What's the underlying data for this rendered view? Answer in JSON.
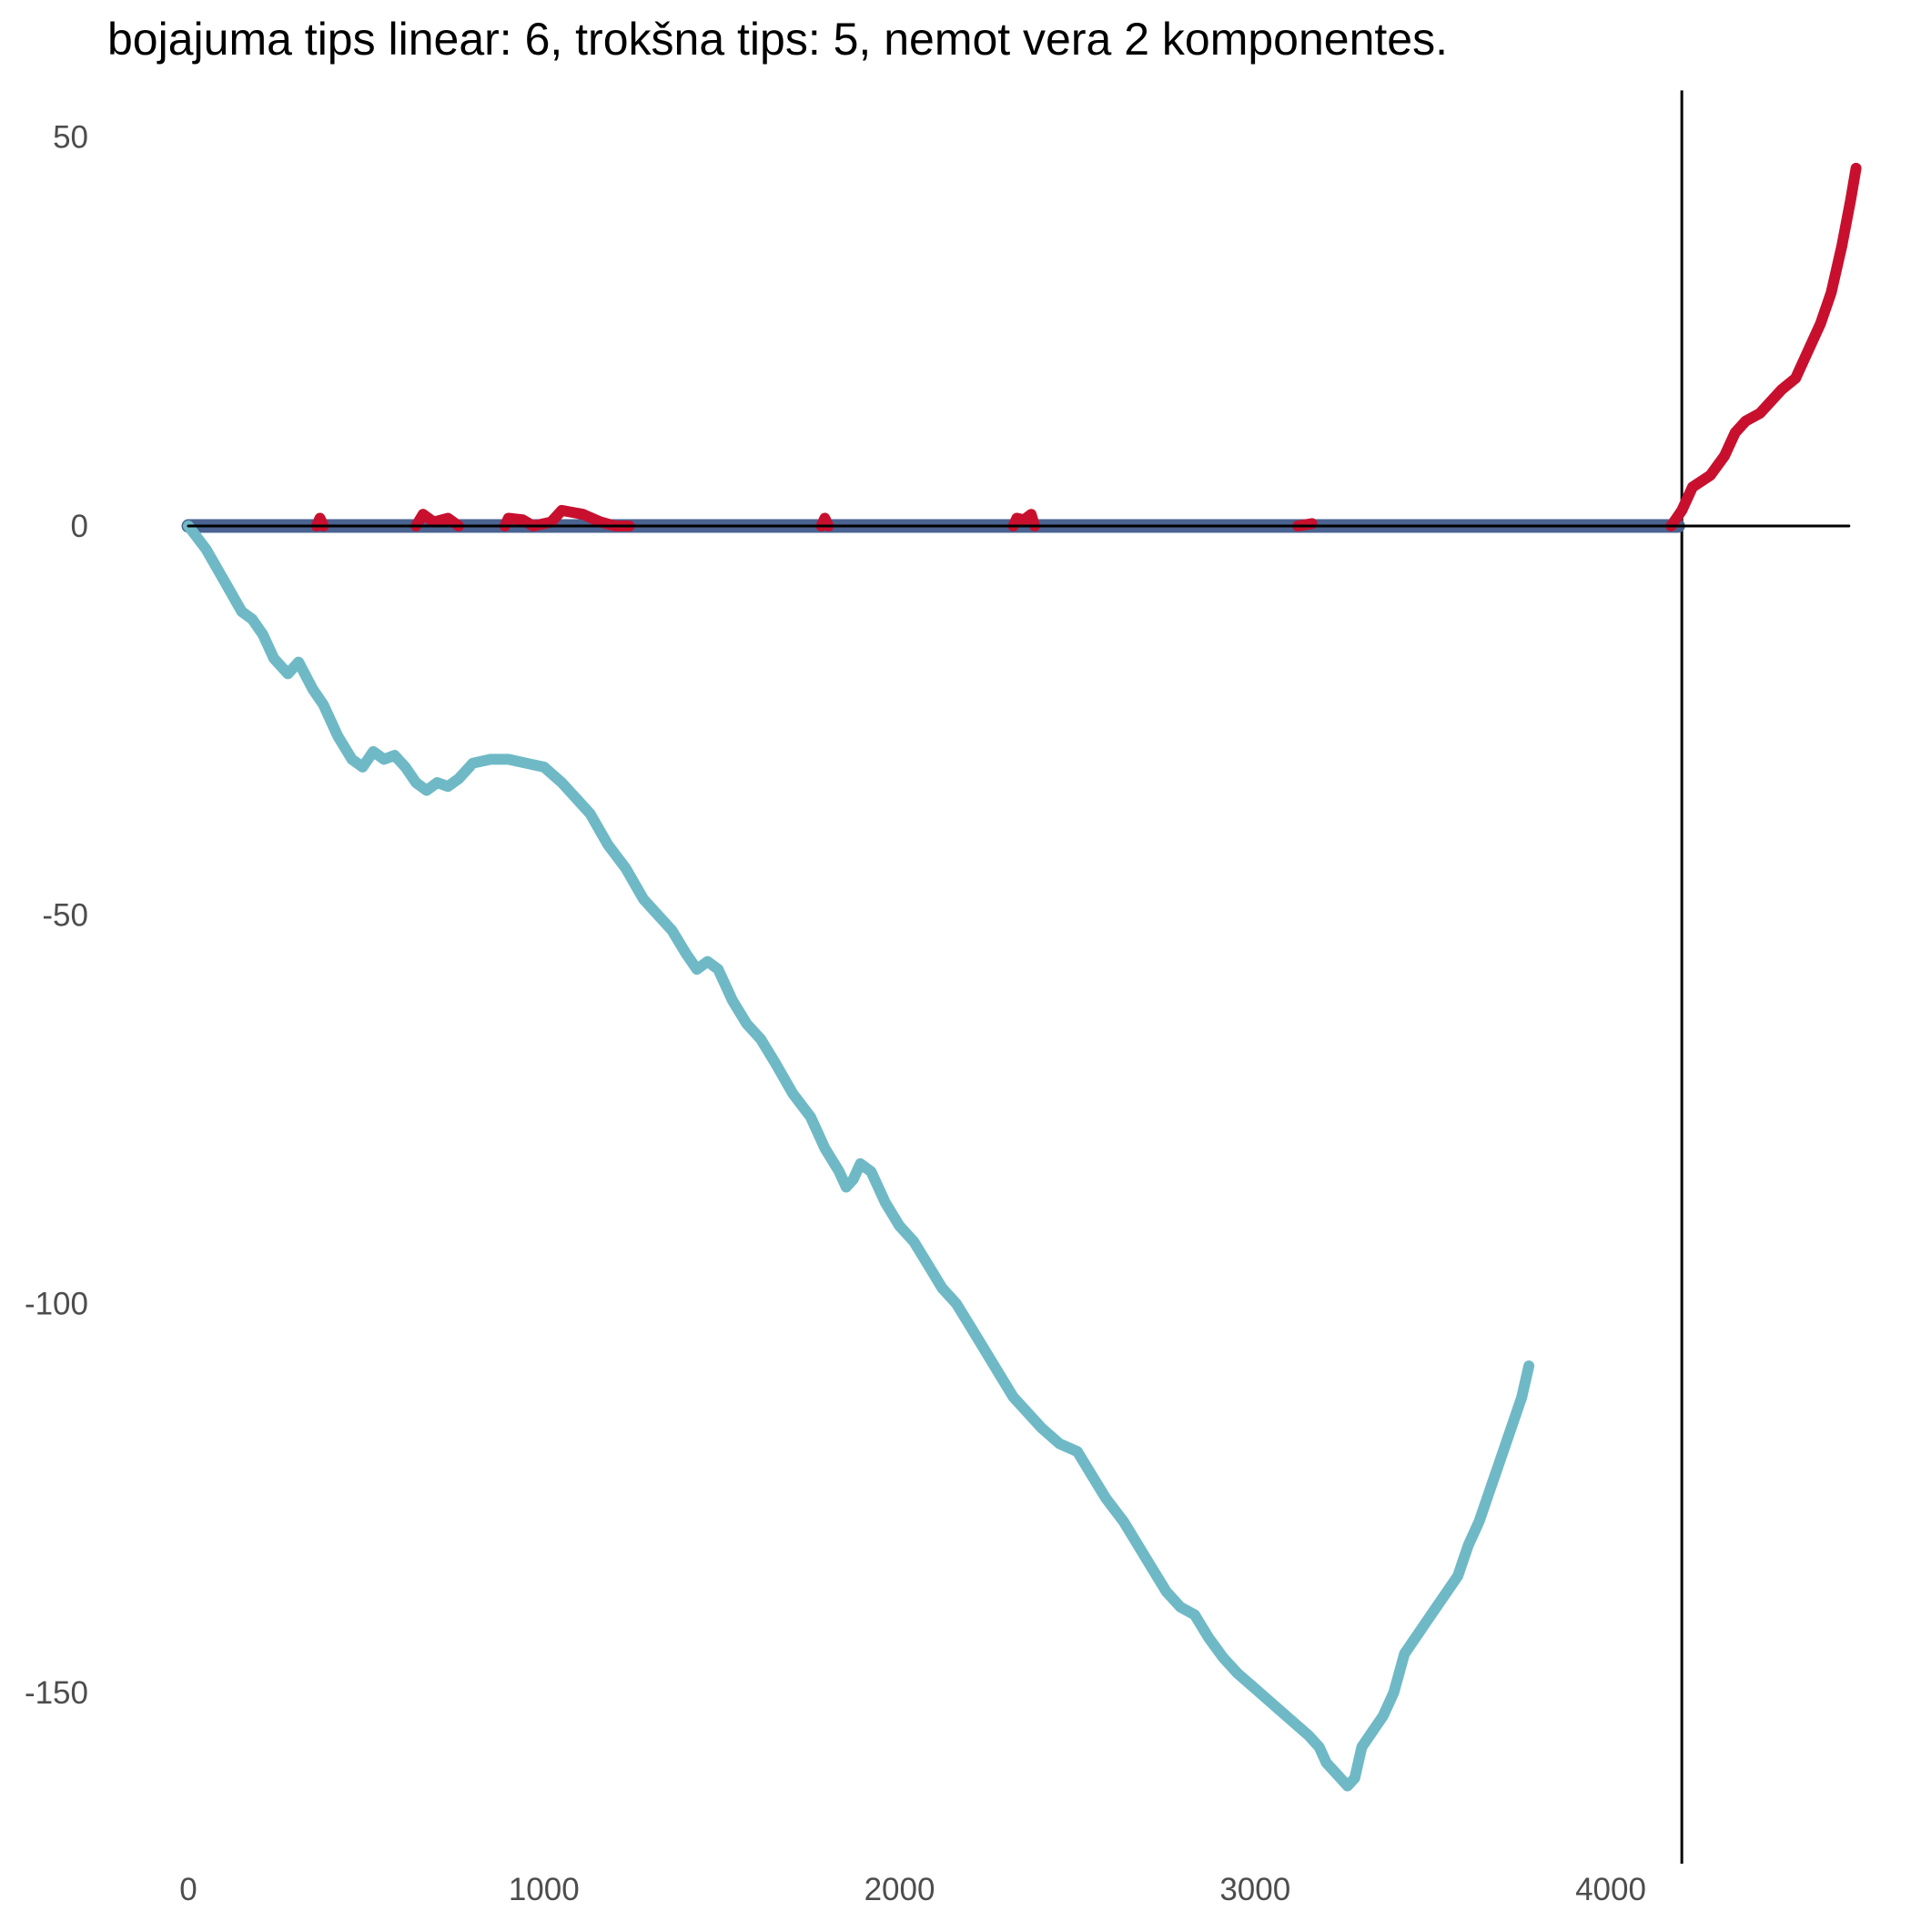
{
  "chart_data": {
    "type": "line",
    "title": "bojajuma tips linear: 6, trokšna tips: 5, nemot vera 2 komponentes.",
    "xlabel": "",
    "ylabel": "",
    "xlim": [
      0,
      4700
    ],
    "ylim": [
      -172,
      56
    ],
    "x_ticks": [
      0,
      1000,
      2000,
      3000,
      4000
    ],
    "y_ticks": [
      50,
      0,
      -50,
      -100,
      -150
    ],
    "grid": false,
    "reference_lines": {
      "vline_x": 4200,
      "hline_y": 0
    },
    "series": [
      {
        "color": "#000000",
        "points": [
          [
            0,
            0
          ],
          [
            4670,
            0
          ]
        ]
      },
      {
        "color": "#4a6391",
        "points": [
          [
            0,
            0
          ],
          [
            4190,
            0
          ]
        ]
      },
      {
        "color": "#c8102e",
        "points": [
          [
            4170,
            0
          ],
          [
            4200,
            2
          ],
          [
            4230,
            5
          ],
          [
            4280,
            6.5
          ],
          [
            4320,
            9
          ],
          [
            4350,
            12
          ],
          [
            4380,
            13.5
          ],
          [
            4420,
            14.5
          ],
          [
            4450,
            16
          ],
          [
            4480,
            17.5
          ],
          [
            4520,
            19
          ],
          [
            4560,
            23
          ],
          [
            4590,
            26
          ],
          [
            4620,
            30
          ],
          [
            4650,
            36
          ],
          [
            4675,
            42
          ],
          [
            4690,
            46
          ]
        ]
      },
      {
        "color": "#c8102e",
        "points": [
          [
            360,
            0
          ],
          [
            370,
            1
          ],
          [
            380,
            0
          ]
        ]
      },
      {
        "color": "#c8102e",
        "points": [
          [
            640,
            0
          ],
          [
            660,
            1.5
          ],
          [
            690,
            0.5
          ],
          [
            730,
            1
          ],
          [
            760,
            0
          ]
        ]
      },
      {
        "color": "#c8102e",
        "points": [
          [
            890,
            0
          ],
          [
            900,
            1
          ],
          [
            940,
            0.8
          ],
          [
            970,
            0
          ],
          [
            1020,
            0.5
          ],
          [
            1050,
            2
          ],
          [
            1110,
            1.5
          ],
          [
            1160,
            0.5
          ],
          [
            1200,
            0
          ],
          [
            1240,
            0
          ]
        ]
      },
      {
        "color": "#c8102e",
        "points": [
          [
            1780,
            0
          ],
          [
            1790,
            1
          ],
          [
            1800,
            0
          ]
        ]
      },
      {
        "color": "#c8102e",
        "points": [
          [
            2320,
            0
          ],
          [
            2330,
            1
          ],
          [
            2350,
            0.8
          ],
          [
            2370,
            1.5
          ],
          [
            2380,
            0
          ]
        ]
      },
      {
        "color": "#c8102e",
        "points": [
          [
            3120,
            0
          ],
          [
            3160,
            0.3
          ]
        ]
      },
      {
        "color": "#6fb9c6",
        "points": [
          [
            0,
            0
          ],
          [
            50,
            -3
          ],
          [
            100,
            -7
          ],
          [
            150,
            -11
          ],
          [
            180,
            -12
          ],
          [
            210,
            -14
          ],
          [
            240,
            -17
          ],
          [
            280,
            -19
          ],
          [
            310,
            -17.5
          ],
          [
            350,
            -21
          ],
          [
            380,
            -23
          ],
          [
            420,
            -27
          ],
          [
            460,
            -30
          ],
          [
            490,
            -31
          ],
          [
            520,
            -29
          ],
          [
            550,
            -30
          ],
          [
            580,
            -29.5
          ],
          [
            610,
            -31
          ],
          [
            640,
            -33
          ],
          [
            670,
            -34
          ],
          [
            700,
            -33
          ],
          [
            730,
            -33.5
          ],
          [
            760,
            -32.5
          ],
          [
            800,
            -30.5
          ],
          [
            850,
            -30
          ],
          [
            900,
            -30
          ],
          [
            950,
            -30.5
          ],
          [
            1000,
            -31
          ],
          [
            1050,
            -33
          ],
          [
            1090,
            -35
          ],
          [
            1130,
            -37
          ],
          [
            1180,
            -41
          ],
          [
            1230,
            -44
          ],
          [
            1280,
            -48
          ],
          [
            1320,
            -50
          ],
          [
            1360,
            -52
          ],
          [
            1400,
            -55
          ],
          [
            1430,
            -57
          ],
          [
            1460,
            -56
          ],
          [
            1490,
            -57
          ],
          [
            1530,
            -61
          ],
          [
            1570,
            -64
          ],
          [
            1610,
            -66
          ],
          [
            1650,
            -69
          ],
          [
            1700,
            -73
          ],
          [
            1750,
            -76
          ],
          [
            1790,
            -80
          ],
          [
            1830,
            -83
          ],
          [
            1850,
            -85
          ],
          [
            1870,
            -84
          ],
          [
            1890,
            -82
          ],
          [
            1920,
            -83
          ],
          [
            1960,
            -87
          ],
          [
            2000,
            -90
          ],
          [
            2040,
            -92
          ],
          [
            2080,
            -95
          ],
          [
            2120,
            -98
          ],
          [
            2160,
            -100
          ],
          [
            2200,
            -103
          ],
          [
            2240,
            -106
          ],
          [
            2280,
            -109
          ],
          [
            2320,
            -112
          ],
          [
            2360,
            -114
          ],
          [
            2400,
            -116
          ],
          [
            2450,
            -118
          ],
          [
            2500,
            -119
          ],
          [
            2540,
            -122
          ],
          [
            2580,
            -125
          ],
          [
            2630,
            -128
          ],
          [
            2670,
            -131
          ],
          [
            2710,
            -134
          ],
          [
            2750,
            -137
          ],
          [
            2790,
            -139
          ],
          [
            2830,
            -140
          ],
          [
            2870,
            -143
          ],
          [
            2910,
            -145.5
          ],
          [
            2950,
            -147.5
          ],
          [
            3000,
            -149.5
          ],
          [
            3050,
            -151.5
          ],
          [
            3100,
            -153.5
          ],
          [
            3150,
            -155.5
          ],
          [
            3180,
            -157
          ],
          [
            3200,
            -159
          ],
          [
            3230,
            -160.5
          ],
          [
            3260,
            -162
          ],
          [
            3280,
            -161
          ],
          [
            3300,
            -157
          ],
          [
            3330,
            -155
          ],
          [
            3360,
            -153
          ],
          [
            3390,
            -150
          ],
          [
            3420,
            -145
          ],
          [
            3450,
            -143
          ],
          [
            3480,
            -141
          ],
          [
            3510,
            -139
          ],
          [
            3540,
            -137
          ],
          [
            3570,
            -135
          ],
          [
            3600,
            -131
          ],
          [
            3630,
            -128
          ],
          [
            3660,
            -124
          ],
          [
            3690,
            -120
          ],
          [
            3720,
            -116
          ],
          [
            3750,
            -112
          ],
          [
            3770,
            -108
          ]
        ]
      }
    ]
  }
}
